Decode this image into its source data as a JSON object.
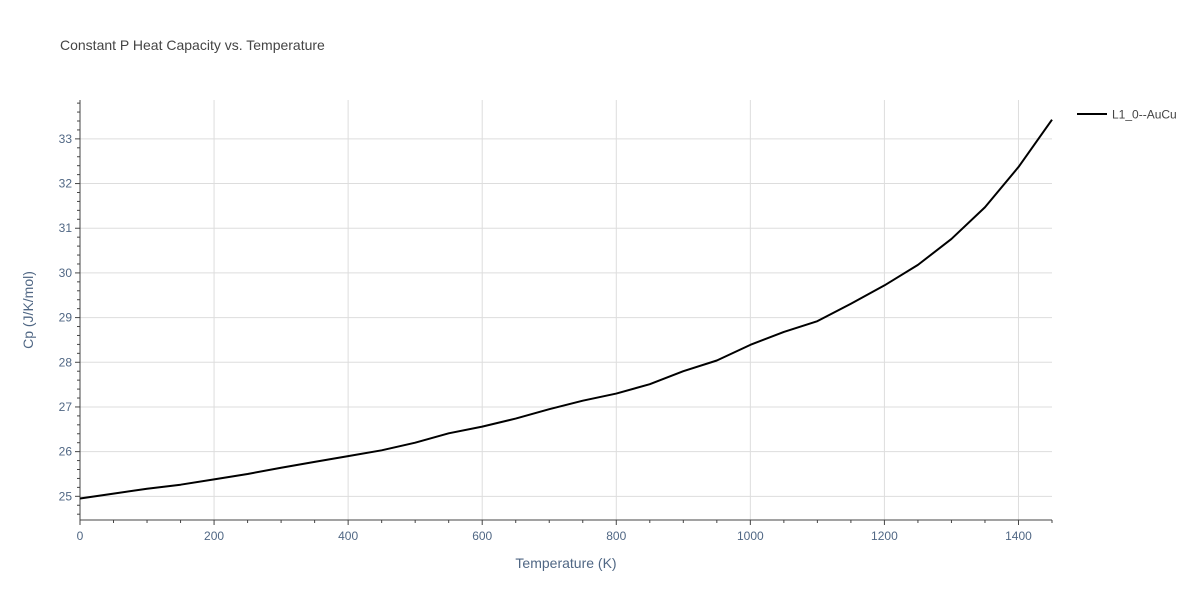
{
  "chart_data": {
    "type": "line",
    "title": "Constant P Heat Capacity vs. Temperature",
    "xlabel": "Temperature (K)",
    "ylabel": "Cp (J/K/mol)",
    "xlim": [
      0,
      1450
    ],
    "ylim": [
      24.47,
      33.87
    ],
    "x_ticks": [
      0,
      200,
      400,
      600,
      800,
      1000,
      1200,
      1400
    ],
    "y_ticks": [
      25,
      26,
      27,
      28,
      29,
      30,
      31,
      32,
      33
    ],
    "grid": true,
    "legend_position": "top-right",
    "series": [
      {
        "name": "L1_0--AuCu",
        "color": "#000000",
        "x": [
          0,
          50,
          100,
          150,
          200,
          250,
          300,
          350,
          400,
          450,
          500,
          550,
          600,
          650,
          700,
          750,
          800,
          850,
          900,
          950,
          1000,
          1050,
          1100,
          1150,
          1200,
          1250,
          1300,
          1350,
          1400,
          1450
        ],
        "y": [
          24.95,
          25.06,
          25.17,
          25.26,
          25.38,
          25.5,
          25.64,
          25.77,
          25.9,
          26.03,
          26.2,
          26.41,
          26.56,
          26.74,
          26.95,
          27.14,
          27.3,
          27.51,
          27.8,
          28.04,
          28.39,
          28.68,
          28.92,
          29.31,
          29.72,
          30.18,
          30.76,
          31.47,
          32.37,
          33.43
        ]
      }
    ]
  }
}
